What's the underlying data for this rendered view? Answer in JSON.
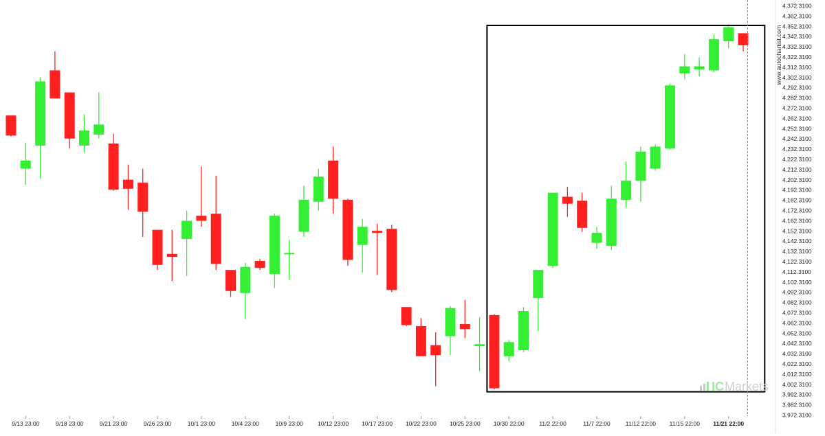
{
  "colors": {
    "bullish": "#33ee33",
    "bearish": "#ff2020",
    "axis_text": "#222222",
    "pattern_box": "#000000",
    "current_line": "#888888",
    "axis_line": "#dddddd"
  },
  "watermark": {
    "site": "www.autochartist.com",
    "brand_prefix": "IC",
    "brand_suffix": "Markets"
  },
  "chart_data": {
    "type": "candlestick",
    "title": "",
    "xlabel": "",
    "ylabel": "",
    "ylim": [
      3967.31,
      4375.31
    ],
    "y_tick_labels": [
      "4,372.3100",
      "4,362.3100",
      "4,352.3100",
      "4,342.3100",
      "4,332.3100",
      "4,322.3100",
      "4,312.3100",
      "4,302.3100",
      "4,292.3100",
      "4,282.3100",
      "4,272.3100",
      "4,262.3100",
      "4,252.3100",
      "4,242.3100",
      "4,232.3100",
      "4,222.3100",
      "4,212.3100",
      "4,202.3100",
      "4,192.3100",
      "4,182.3100",
      "4,172.3100",
      "4,162.3100",
      "4,152.3100",
      "4,142.3100",
      "4,132.3100",
      "4,122.3100",
      "4,112.3100",
      "4,102.3100",
      "4,092.3100",
      "4,082.3100",
      "4,072.3100",
      "4,062.3100",
      "4,052.3100",
      "4,042.3100",
      "4,032.3100",
      "4,022.3100",
      "4,012.3100",
      "4,002.3100",
      "3,992.3100",
      "3,982.3100",
      "3,972.3100"
    ],
    "x_tick_labels": [
      {
        "label": "9/13 23:00",
        "index": 1
      },
      {
        "label": "9/18 23:00",
        "index": 4
      },
      {
        "label": "9/21 23:00",
        "index": 7
      },
      {
        "label": "9/26 23:00",
        "index": 10
      },
      {
        "label": "10/1 23:00",
        "index": 13
      },
      {
        "label": "10/4 23:00",
        "index": 16
      },
      {
        "label": "10/9 23:00",
        "index": 19
      },
      {
        "label": "10/12 23:00",
        "index": 22
      },
      {
        "label": "10/17 23:00",
        "index": 25
      },
      {
        "label": "10/22 23:00",
        "index": 28
      },
      {
        "label": "10/25 23:00",
        "index": 31
      },
      {
        "label": "10/30 22:00",
        "index": 34
      },
      {
        "label": "11/2 22:00",
        "index": 37
      },
      {
        "label": "11/7 22:00",
        "index": 40
      },
      {
        "label": "11/12 22:00",
        "index": 43
      },
      {
        "label": "11/15 22:00",
        "index": 46
      },
      {
        "label": "11/21 22:00",
        "index": 49,
        "bold": true
      }
    ],
    "candles": [
      {
        "o": 4266.0,
        "h": 4266.0,
        "l": 4245.0,
        "c": 4246.0
      },
      {
        "o": 4213.0,
        "h": 4239.0,
        "l": 4197.0,
        "c": 4221.0
      },
      {
        "o": 4236.0,
        "h": 4304.0,
        "l": 4203.0,
        "c": 4300.0
      },
      {
        "o": 4311.0,
        "h": 4330.0,
        "l": 4283.0,
        "c": 4283.0
      },
      {
        "o": 4289.0,
        "h": 4289.0,
        "l": 4233.0,
        "c": 4243.0
      },
      {
        "o": 4236.0,
        "h": 4267.0,
        "l": 4229.0,
        "c": 4251.0
      },
      {
        "o": 4247.0,
        "h": 4289.0,
        "l": 4243.0,
        "c": 4257.0
      },
      {
        "o": 4238.0,
        "h": 4248.0,
        "l": 4191.0,
        "c": 4192.0
      },
      {
        "o": 4202.0,
        "h": 4217.0,
        "l": 4172.0,
        "c": 4193.0
      },
      {
        "o": 4199.0,
        "h": 4213.0,
        "l": 4145.0,
        "c": 4170.0
      },
      {
        "o": 4152.0,
        "h": 4152.0,
        "l": 4112.0,
        "c": 4117.0
      },
      {
        "o": 4128.0,
        "h": 4152.0,
        "l": 4101.0,
        "c": 4125.0
      },
      {
        "o": 4143.0,
        "h": 4171.0,
        "l": 4106.0,
        "c": 4161.0
      },
      {
        "o": 4166.0,
        "h": 4215.0,
        "l": 4155.0,
        "c": 4161.0
      },
      {
        "o": 4168.0,
        "h": 4206.0,
        "l": 4112.0,
        "c": 4118.0
      },
      {
        "o": 4112.0,
        "h": 4112.0,
        "l": 4085.0,
        "c": 4091.0
      },
      {
        "o": 4089.0,
        "h": 4119.0,
        "l": 4063.0,
        "c": 4115.0
      },
      {
        "o": 4121.0,
        "h": 4123.0,
        "l": 4112.0,
        "c": 4114.0
      },
      {
        "o": 4108.0,
        "h": 4168.0,
        "l": 4094.0,
        "c": 4166.0
      },
      {
        "o": 4129.0,
        "h": 4142.0,
        "l": 4102.0,
        "c": 4129.0
      },
      {
        "o": 4150.0,
        "h": 4196.0,
        "l": 4145.0,
        "c": 4182.0
      },
      {
        "o": 4180.0,
        "h": 4213.0,
        "l": 4171.0,
        "c": 4205.0
      },
      {
        "o": 4221.0,
        "h": 4235.0,
        "l": 4168.0,
        "c": 4183.0
      },
      {
        "o": 4182.0,
        "h": 4183.0,
        "l": 4116.0,
        "c": 4122.0
      },
      {
        "o": 4137.0,
        "h": 4163.0,
        "l": 4109.0,
        "c": 4155.0
      },
      {
        "o": 4151.0,
        "h": 4158.0,
        "l": 4107.0,
        "c": 4149.0
      },
      {
        "o": 4153.0,
        "h": 4157.0,
        "l": 4090.0,
        "c": 4092.0
      },
      {
        "o": 4075.0,
        "h": 4075.0,
        "l": 4056.0,
        "c": 4057.0
      },
      {
        "o": 4056.0,
        "h": 4064.0,
        "l": 4026.0,
        "c": 4026.0
      },
      {
        "o": 4037.0,
        "h": 4050.0,
        "l": 3996.0,
        "c": 4027.0
      },
      {
        "o": 4046.0,
        "h": 4076.0,
        "l": 4027.0,
        "c": 4074.0
      },
      {
        "o": 4058.0,
        "h": 4082.0,
        "l": 4044.0,
        "c": 4053.0
      },
      {
        "o": 4036.0,
        "h": 4065.0,
        "l": 4011.0,
        "c": 4038.0
      },
      {
        "o": 4067.0,
        "h": 4068.0,
        "l": 3993.0,
        "c": 3994.0
      },
      {
        "o": 4026.0,
        "h": 4042.0,
        "l": 4021.0,
        "c": 4040.0
      },
      {
        "o": 4032.0,
        "h": 4075.0,
        "l": 4030.0,
        "c": 4071.0
      },
      {
        "o": 4084.0,
        "h": 4112.0,
        "l": 4051.0,
        "c": 4112.0
      },
      {
        "o": 4116.0,
        "h": 4189.0,
        "l": 4114.0,
        "c": 4189.0
      },
      {
        "o": 4185.0,
        "h": 4195.0,
        "l": 4165.0,
        "c": 4178.0
      },
      {
        "o": 4181.0,
        "h": 4189.0,
        "l": 4150.0,
        "c": 4154.0
      },
      {
        "o": 4139.0,
        "h": 4155.0,
        "l": 4133.0,
        "c": 4149.0
      },
      {
        "o": 4136.0,
        "h": 4196.0,
        "l": 4132.0,
        "c": 4183.0
      },
      {
        "o": 4182.0,
        "h": 4220.0,
        "l": 4174.0,
        "c": 4201.0
      },
      {
        "o": 4201.0,
        "h": 4235.0,
        "l": 4180.0,
        "c": 4230.0
      },
      {
        "o": 4213.0,
        "h": 4237.0,
        "l": 4211.0,
        "c": 4235.0
      },
      {
        "o": 4233.0,
        "h": 4298.0,
        "l": 4232.0,
        "c": 4296.0
      },
      {
        "o": 4308.0,
        "h": 4327.0,
        "l": 4302.0,
        "c": 4315.0
      },
      {
        "o": 4312.0,
        "h": 4324.0,
        "l": 4305.0,
        "c": 4315.0
      },
      {
        "o": 4311.0,
        "h": 4347.0,
        "l": 4309.0,
        "c": 4342.0
      },
      {
        "o": 4340.0,
        "h": 4357.0,
        "l": 4333.0,
        "c": 4354.0
      },
      {
        "o": 4348.0,
        "h": 4348.0,
        "l": 4330.0,
        "c": 4336.0
      }
    ],
    "pattern_box": {
      "start_index": 33,
      "end_index": 51,
      "top": 4355.8,
      "bottom": 3990.5
    },
    "current_marker_index": 50,
    "grid": false,
    "legend": "none"
  }
}
